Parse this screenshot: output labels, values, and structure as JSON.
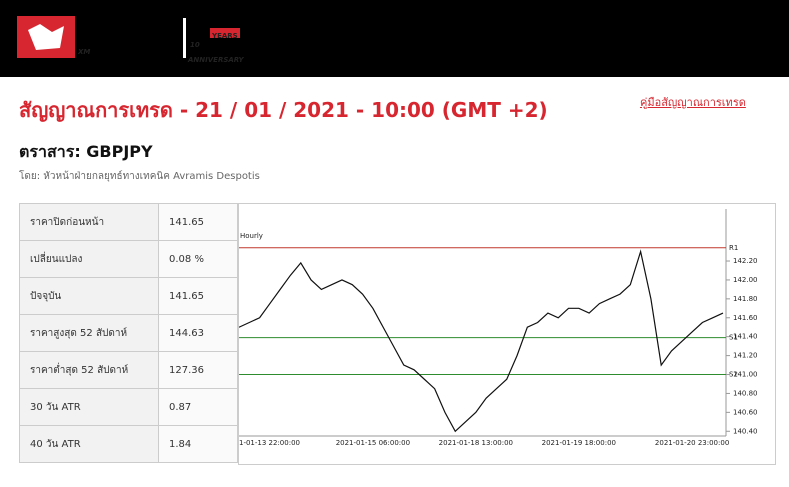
{
  "header": {
    "logo": "XM",
    "anniversary_number": "10",
    "anniversary_years": "YEARS",
    "anniversary_text": "ANNIVERSARY"
  },
  "title": "สัญญาณการเทรด - 21 / 01 / 2021 - 10:00 (GMT +2)",
  "guide_link": "คู่มือสัญญาณการเทรด",
  "instrument": "ตราสาร: GBPJPY",
  "author": "โดย: หัวหน้าฝ่ายกลยุทธ์ทางเทคนิค Avramis Despotis",
  "table": {
    "rows": [
      [
        "ราคาปิดก่อนหน้า",
        "141.65"
      ],
      [
        "เปลี่ยนแปลง",
        "0.08 %"
      ],
      [
        "ปัจจุบัน",
        "141.65"
      ],
      [
        "ราคาสูงสุด 52 สัปดาห์",
        "144.63"
      ],
      [
        "ราคาต่ำสุด 52 สัปดาห์",
        "127.36"
      ],
      [
        "30 วัน ATR",
        "0.87"
      ],
      [
        "40 วัน ATR",
        "1.84"
      ]
    ]
  },
  "chart_data": {
    "type": "line",
    "title": "Hourly",
    "color": "#111111",
    "categories": [
      "1-01-13 22:00:00",
      null,
      null,
      null,
      null,
      null,
      null,
      null,
      null,
      null,
      null,
      null,
      null,
      "2021-01-15 06:00:00",
      null,
      null,
      null,
      null,
      null,
      null,
      null,
      null,
      null,
      "2021-01-18 13:00:00",
      null,
      null,
      null,
      null,
      null,
      null,
      null,
      null,
      null,
      "2021-01-19 18:00:00",
      null,
      null,
      null,
      null,
      null,
      null,
      null,
      null,
      null,
      null,
      "2021-01-20 23:00:00",
      null,
      null,
      null
    ],
    "values": [
      141.5,
      141.55,
      141.6,
      141.75,
      141.9,
      142.05,
      142.18,
      142.0,
      141.9,
      141.95,
      142.0,
      141.95,
      141.85,
      141.7,
      141.5,
      141.3,
      141.1,
      141.05,
      140.95,
      140.85,
      140.6,
      140.4,
      140.5,
      140.6,
      140.75,
      140.85,
      140.95,
      141.2,
      141.5,
      141.55,
      141.65,
      141.6,
      141.7,
      141.7,
      141.65,
      141.75,
      141.8,
      141.85,
      141.95,
      142.3,
      141.8,
      141.1,
      141.25,
      141.35,
      141.45,
      141.55,
      141.6,
      141.65
    ],
    "ylim": [
      140.35,
      142.75
    ],
    "yticks": [
      {
        "value": 140.4,
        "label": "140.40"
      },
      {
        "value": 140.6,
        "label": "140.60"
      },
      {
        "value": 140.8,
        "label": "140.80"
      },
      {
        "value": 141.0,
        "label": "141.00"
      },
      {
        "value": 141.2,
        "label": "141.20"
      },
      {
        "value": 141.4,
        "label": "141.40"
      },
      {
        "value": 141.6,
        "label": "141.60"
      },
      {
        "value": 141.8,
        "label": "141.80"
      },
      {
        "value": 142.0,
        "label": "142.00"
      },
      {
        "value": 142.2,
        "label": "142.20"
      }
    ],
    "levels": [
      {
        "label": "R1",
        "value": 142.34,
        "color": "#c0392b"
      },
      {
        "label": "S1",
        "value": 141.39,
        "color": "#2e8b2e"
      },
      {
        "label": "S2",
        "value": 141.0,
        "color": "#2e8b2e"
      }
    ]
  }
}
